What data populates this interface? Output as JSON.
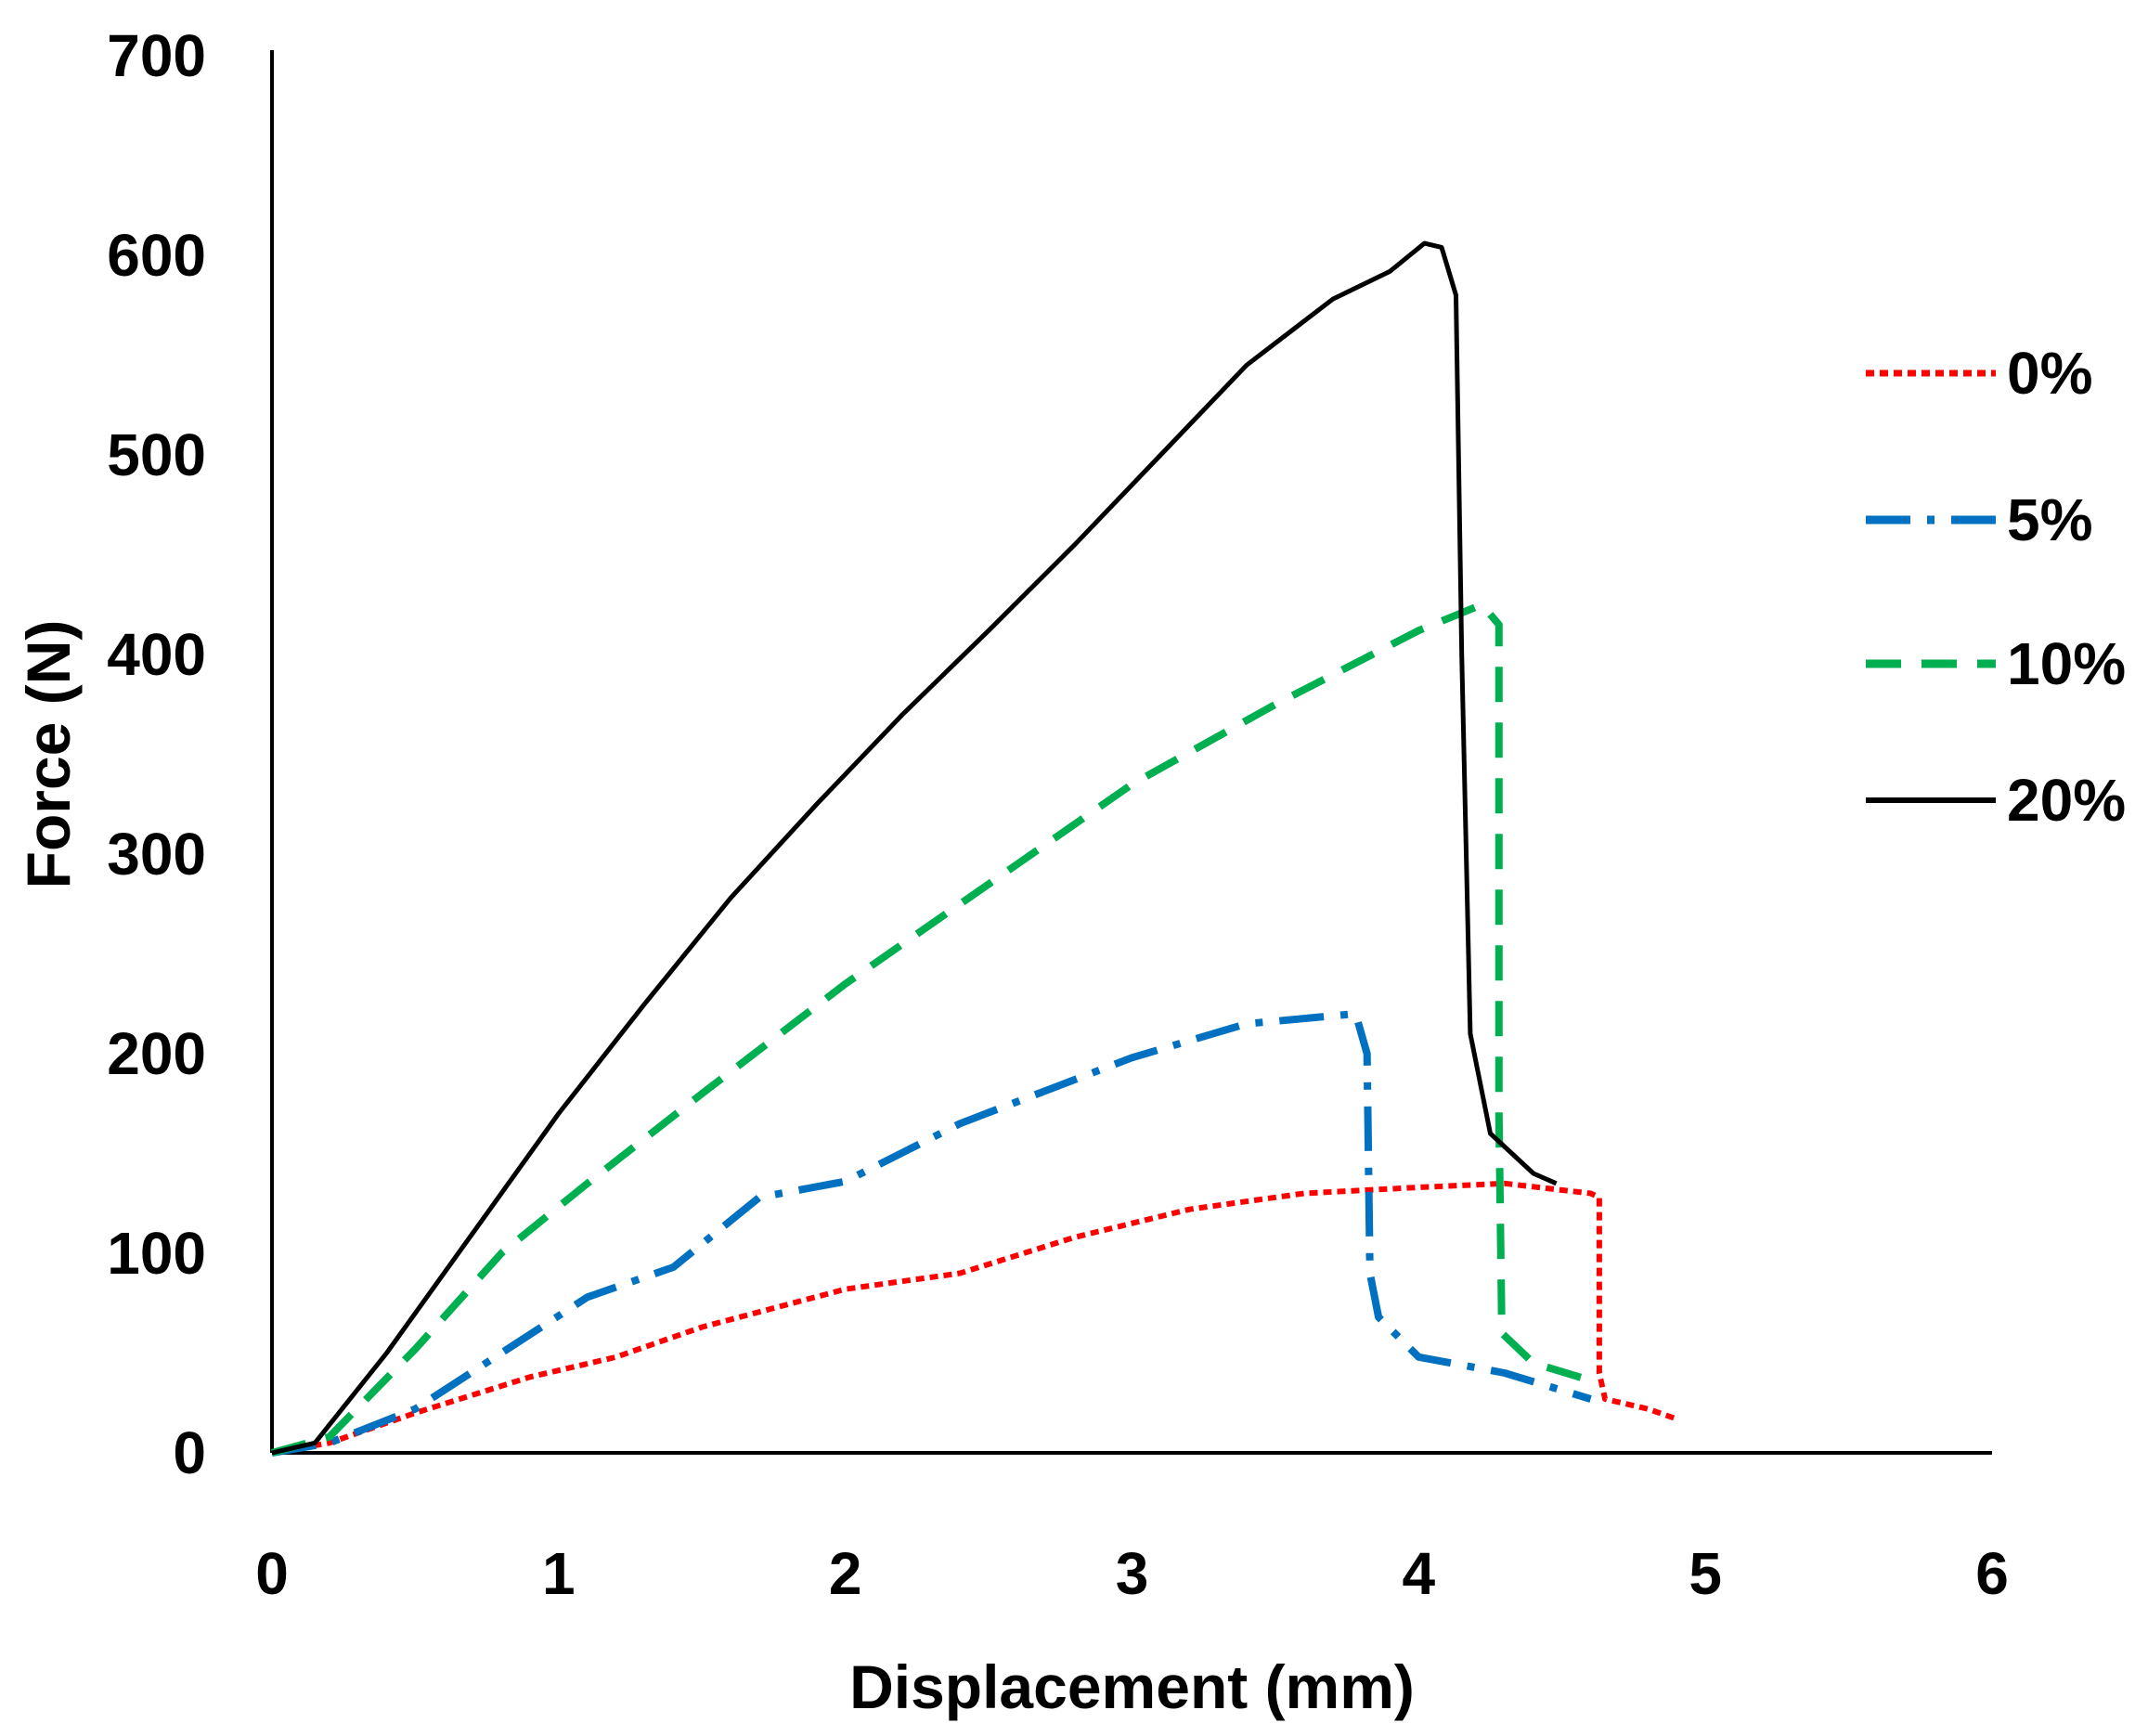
{
  "chart_data": {
    "type": "line",
    "title": "",
    "xlabel": "Displacement (mm)",
    "ylabel": "Force (N)",
    "xlim": [
      0,
      6
    ],
    "ylim": [
      0,
      700
    ],
    "xticks": [
      "0",
      "1",
      "2",
      "3",
      "4",
      "5",
      "6"
    ],
    "yticks": [
      "0",
      "100",
      "200",
      "300",
      "400",
      "500",
      "600",
      "700"
    ],
    "grid": false,
    "legend_position": "right",
    "series": [
      {
        "name": "0%",
        "color": "#ff0000",
        "style": "dotted",
        "points": [
          [
            0,
            0
          ],
          [
            0.2,
            5
          ],
          [
            0.5,
            20
          ],
          [
            0.9,
            38
          ],
          [
            1.2,
            48
          ],
          [
            1.5,
            63
          ],
          [
            2.0,
            82
          ],
          [
            2.4,
            90
          ],
          [
            2.8,
            108
          ],
          [
            3.2,
            122
          ],
          [
            3.6,
            130
          ],
          [
            4.0,
            133
          ],
          [
            4.3,
            135
          ],
          [
            4.6,
            130
          ],
          [
            4.63,
            128
          ],
          [
            4.63,
            40
          ],
          [
            4.65,
            27
          ],
          [
            4.8,
            22
          ],
          [
            4.9,
            17
          ]
        ]
      },
      {
        "name": "5%",
        "color": "#0070c0",
        "style": "dash-dot",
        "points": [
          [
            0,
            0
          ],
          [
            0.2,
            5
          ],
          [
            0.5,
            22
          ],
          [
            0.8,
            50
          ],
          [
            1.1,
            78
          ],
          [
            1.4,
            93
          ],
          [
            1.7,
            128
          ],
          [
            2.0,
            136
          ],
          [
            2.4,
            165
          ],
          [
            3.0,
            198
          ],
          [
            3.4,
            215
          ],
          [
            3.78,
            220
          ],
          [
            3.82,
            200
          ],
          [
            3.83,
            90
          ],
          [
            3.86,
            68
          ],
          [
            4.0,
            48
          ],
          [
            4.3,
            40
          ],
          [
            4.6,
            27
          ]
        ]
      },
      {
        "name": "10%",
        "color": "#00b050",
        "style": "dashed",
        "points": [
          [
            0,
            0
          ],
          [
            0.2,
            8
          ],
          [
            0.5,
            52
          ],
          [
            0.8,
            100
          ],
          [
            1.1,
            135
          ],
          [
            1.5,
            180
          ],
          [
            2.0,
            235
          ],
          [
            2.5,
            285
          ],
          [
            3.0,
            335
          ],
          [
            3.5,
            375
          ],
          [
            4.0,
            412
          ],
          [
            4.22,
            425
          ],
          [
            4.28,
            415
          ],
          [
            4.28,
            170
          ],
          [
            4.29,
            60
          ],
          [
            4.4,
            45
          ],
          [
            4.63,
            35
          ]
        ]
      },
      {
        "name": "20%",
        "color": "#000000",
        "style": "solid",
        "points": [
          [
            0,
            0
          ],
          [
            0.15,
            5
          ],
          [
            0.4,
            50
          ],
          [
            0.7,
            110
          ],
          [
            1.0,
            170
          ],
          [
            1.3,
            225
          ],
          [
            1.6,
            278
          ],
          [
            1.9,
            325
          ],
          [
            2.2,
            370
          ],
          [
            2.5,
            412
          ],
          [
            2.8,
            455
          ],
          [
            3.1,
            500
          ],
          [
            3.4,
            545
          ],
          [
            3.7,
            578
          ],
          [
            3.9,
            592
          ],
          [
            4.02,
            606
          ],
          [
            4.08,
            604
          ],
          [
            4.13,
            580
          ],
          [
            4.15,
            400
          ],
          [
            4.18,
            210
          ],
          [
            4.25,
            160
          ],
          [
            4.4,
            140
          ],
          [
            4.48,
            135
          ]
        ]
      }
    ]
  }
}
